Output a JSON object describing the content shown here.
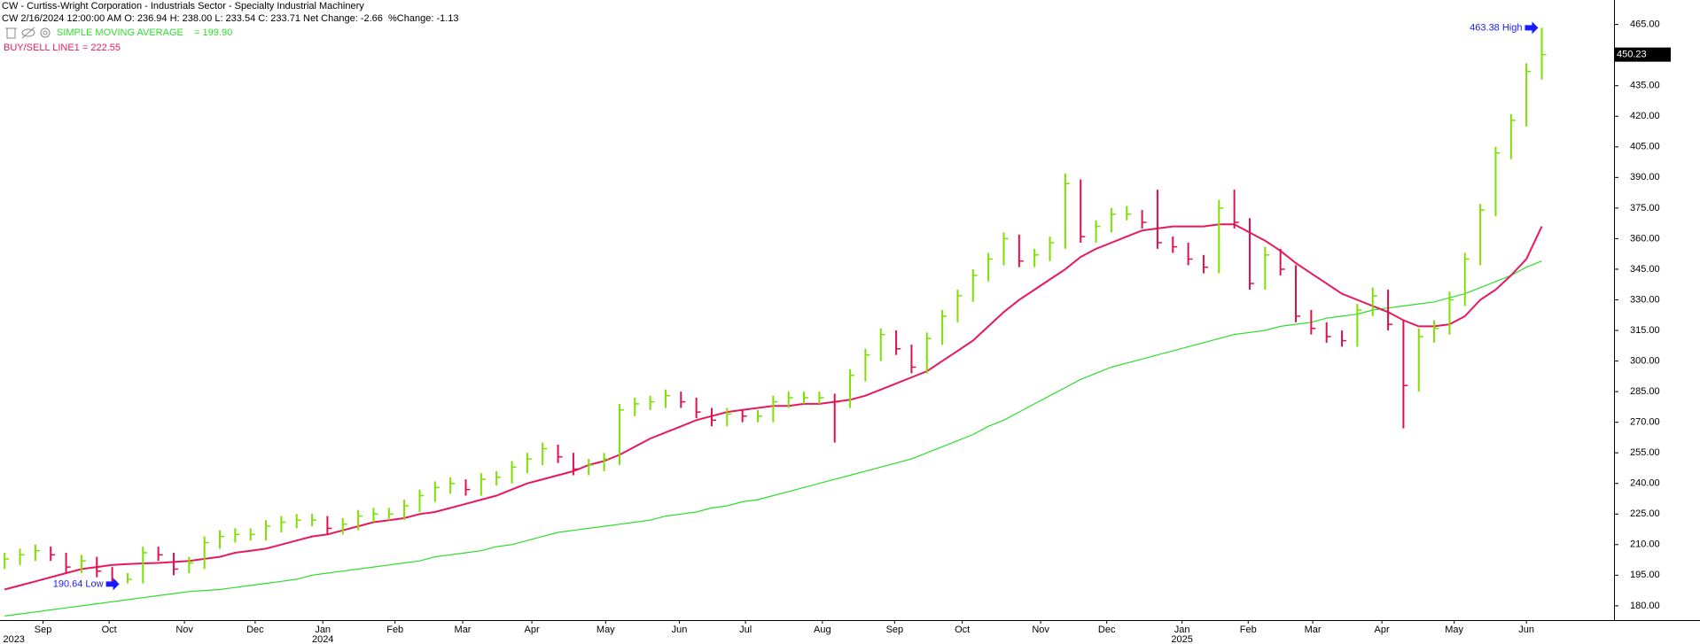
{
  "chart_data": {
    "type": "hlc-bar",
    "title": "CW - Curtiss-Wright Corporation - Industrials Sector - Specialty Industrial Machinery",
    "subtitle": "CW 2/16/2024 12:00:00 AM O: 236.94 H: 238.00 L: 233.54 C: 233.71 Net Change: -2.66  %Change: -1.13",
    "up_color": "#7ee000",
    "down_color": "#e0104f",
    "high": [
      206,
      208,
      210,
      209,
      206,
      205,
      204,
      199,
      196,
      209,
      209,
      206,
      204,
      214,
      217,
      218,
      218,
      222,
      224,
      225,
      225,
      224,
      223,
      227,
      228,
      228,
      232,
      237,
      241,
      243,
      242,
      245,
      246,
      251,
      255,
      260,
      259,
      255,
      252,
      255,
      279,
      282,
      283,
      286,
      285,
      282,
      277,
      277,
      276,
      276,
      283,
      285,
      285,
      285,
      284,
      296,
      306,
      316,
      315,
      308,
      314,
      325,
      335,
      345,
      353,
      363,
      362,
      355,
      361,
      392,
      389,
      369,
      375,
      376,
      374,
      384,
      361,
      358,
      352,
      379,
      384,
      370,
      356,
      355,
      347,
      325,
      319,
      315,
      328,
      336,
      335,
      320,
      316,
      320,
      334,
      353,
      377,
      405,
      421,
      446,
      463.38
    ],
    "low": [
      198,
      200,
      202,
      202,
      196,
      196,
      194,
      190.64,
      191,
      191,
      202,
      195,
      196,
      198,
      208,
      211,
      212,
      212,
      216,
      218,
      219,
      215,
      215,
      217,
      221,
      222,
      222,
      226,
      231,
      235,
      234,
      234,
      239,
      240,
      245,
      249,
      250,
      244,
      244,
      246,
      249,
      273,
      276,
      277,
      277,
      272,
      268,
      268,
      270,
      270,
      270,
      277,
      279,
      279,
      260,
      277,
      290,
      300,
      303,
      294,
      294,
      308,
      319,
      329,
      339,
      347,
      346,
      346,
      349,
      355,
      358,
      358,
      363,
      369,
      365,
      355,
      353,
      347,
      343,
      343,
      365,
      335,
      335,
      342,
      319,
      313,
      309,
      307,
      307,
      322,
      315,
      267,
      285,
      309,
      313,
      327,
      347,
      371,
      399,
      415,
      438
    ],
    "close": [
      203,
      205,
      207,
      205,
      199,
      202,
      197,
      192,
      193,
      206,
      205,
      198,
      201,
      211,
      214,
      215,
      215,
      219,
      221,
      222,
      222,
      218,
      220,
      224,
      225,
      225,
      229,
      234,
      238,
      240,
      237,
      242,
      243,
      248,
      252,
      257,
      253,
      247,
      249,
      252,
      276,
      279,
      280,
      283,
      280,
      275,
      271,
      274,
      273,
      273,
      280,
      282,
      282,
      282,
      280,
      293,
      303,
      313,
      306,
      297,
      311,
      322,
      332,
      342,
      350,
      360,
      349,
      352,
      358,
      387,
      361,
      366,
      372,
      372,
      368,
      358,
      356,
      350,
      346,
      375,
      368,
      338,
      352,
      345,
      322,
      316,
      312,
      310,
      325,
      332,
      318,
      288,
      312,
      316,
      330,
      350,
      374,
      402,
      418,
      442,
      450.23
    ],
    "series": [
      {
        "name": "SIMPLE MOVING AVERAGE    = 199.90",
        "color": "#2edc2e",
        "values": [
          175,
          176,
          177,
          178,
          179,
          180,
          181,
          182,
          183,
          184,
          185,
          186,
          187,
          187.5,
          188,
          189,
          190,
          191,
          192,
          193,
          195,
          196,
          197,
          198,
          199,
          200,
          201,
          202,
          204,
          205,
          206,
          207,
          209,
          210,
          212,
          214,
          216,
          217,
          218,
          219,
          220,
          221,
          222,
          224,
          225,
          226,
          228,
          229,
          231,
          232,
          234,
          236,
          238,
          240,
          242,
          244,
          246,
          248,
          250,
          252,
          255,
          258,
          261,
          264,
          268,
          271,
          275,
          279,
          283,
          287,
          291,
          294,
          297,
          299,
          301,
          303,
          305,
          307,
          309,
          311,
          313,
          314,
          315,
          317,
          318,
          319,
          321,
          322,
          323,
          325,
          326,
          327,
          328,
          329,
          331,
          333,
          336,
          339,
          342,
          346,
          349
        ]
      },
      {
        "name": "BUY/SELL LINE1 = 222.55",
        "color": "#e8195a",
        "values": [
          188,
          190,
          192,
          194,
          196,
          198,
          199,
          200,
          200.5,
          200.8,
          201,
          201.5,
          202,
          203,
          204,
          206,
          207,
          208,
          210,
          212,
          214,
          215,
          217,
          219,
          221,
          222,
          223,
          225,
          226,
          228,
          230,
          232,
          234,
          237,
          240,
          242,
          244,
          246,
          249,
          251,
          254,
          258,
          262,
          265,
          268,
          271,
          273,
          275,
          276,
          277,
          278,
          278,
          279,
          279,
          280,
          281,
          283,
          286,
          289,
          292,
          295,
          300,
          305,
          310,
          317,
          324,
          330,
          335,
          340,
          345,
          351,
          355,
          358,
          361,
          364,
          365,
          366,
          366,
          366,
          367,
          367,
          363,
          359,
          354,
          348,
          343,
          338,
          333,
          330,
          327,
          324,
          320,
          317,
          317,
          318,
          322,
          330,
          335,
          342,
          350,
          366
        ]
      }
    ],
    "annotations": [
      "463.38 High",
      "190.64 Low"
    ],
    "last_price": 450.23,
    "ylim": [
      173,
      477
    ],
    "yticks": [
      {
        "value": 180,
        "label": "180.00"
      },
      {
        "value": 195,
        "label": "195.00"
      },
      {
        "value": 210,
        "label": "210.00"
      },
      {
        "value": 225,
        "label": "225.00"
      },
      {
        "value": 240,
        "label": "240.00"
      },
      {
        "value": 255,
        "label": "255.00"
      },
      {
        "value": 270,
        "label": "270.00"
      },
      {
        "value": 285,
        "label": "285.00"
      },
      {
        "value": 300,
        "label": "300.00"
      },
      {
        "value": 315,
        "label": "315.00"
      },
      {
        "value": 330,
        "label": "330.00"
      },
      {
        "value": 345,
        "label": "345.00"
      },
      {
        "value": 360,
        "label": "360.00"
      },
      {
        "value": 375,
        "label": "375.00"
      },
      {
        "value": 390,
        "label": "390.00"
      },
      {
        "value": 405,
        "label": "405.00"
      },
      {
        "value": 420,
        "label": "420.00"
      },
      {
        "value": 435,
        "label": "435.00"
      },
      {
        "value": 450,
        "label": "450.00"
      },
      {
        "value": 465,
        "label": "465.00"
      }
    ],
    "xlim": [
      0,
      105
    ],
    "xticks": [
      {
        "value": 2.8,
        "label": "Sep"
      },
      {
        "value": 7.1,
        "label": "Oct"
      },
      {
        "value": 12.0,
        "label": "Nov"
      },
      {
        "value": 16.6,
        "label": "Dec"
      },
      {
        "value": 21.0,
        "label": "Jan"
      },
      {
        "value": 25.7,
        "label": "Feb"
      },
      {
        "value": 30.1,
        "label": "Mar"
      },
      {
        "value": 34.6,
        "label": "Apr"
      },
      {
        "value": 39.4,
        "label": "May"
      },
      {
        "value": 44.2,
        "label": "Jun"
      },
      {
        "value": 48.5,
        "label": "Jul"
      },
      {
        "value": 53.5,
        "label": "Aug"
      },
      {
        "value": 58.2,
        "label": "Sep"
      },
      {
        "value": 62.6,
        "label": "Oct"
      },
      {
        "value": 67.7,
        "label": "Nov"
      },
      {
        "value": 72.0,
        "label": "Dec"
      },
      {
        "value": 76.9,
        "label": "Jan"
      },
      {
        "value": 81.2,
        "label": "Feb"
      },
      {
        "value": 85.4,
        "label": "Mar"
      },
      {
        "value": 89.9,
        "label": "Apr"
      },
      {
        "value": 94.6,
        "label": "May"
      },
      {
        "value": 99.3,
        "label": "Jun"
      }
    ],
    "year_ticks": [
      {
        "value": 0.2,
        "label": "2023"
      },
      {
        "value": 21.0,
        "label": "2024"
      },
      {
        "value": 76.9,
        "label": "2025"
      }
    ]
  }
}
